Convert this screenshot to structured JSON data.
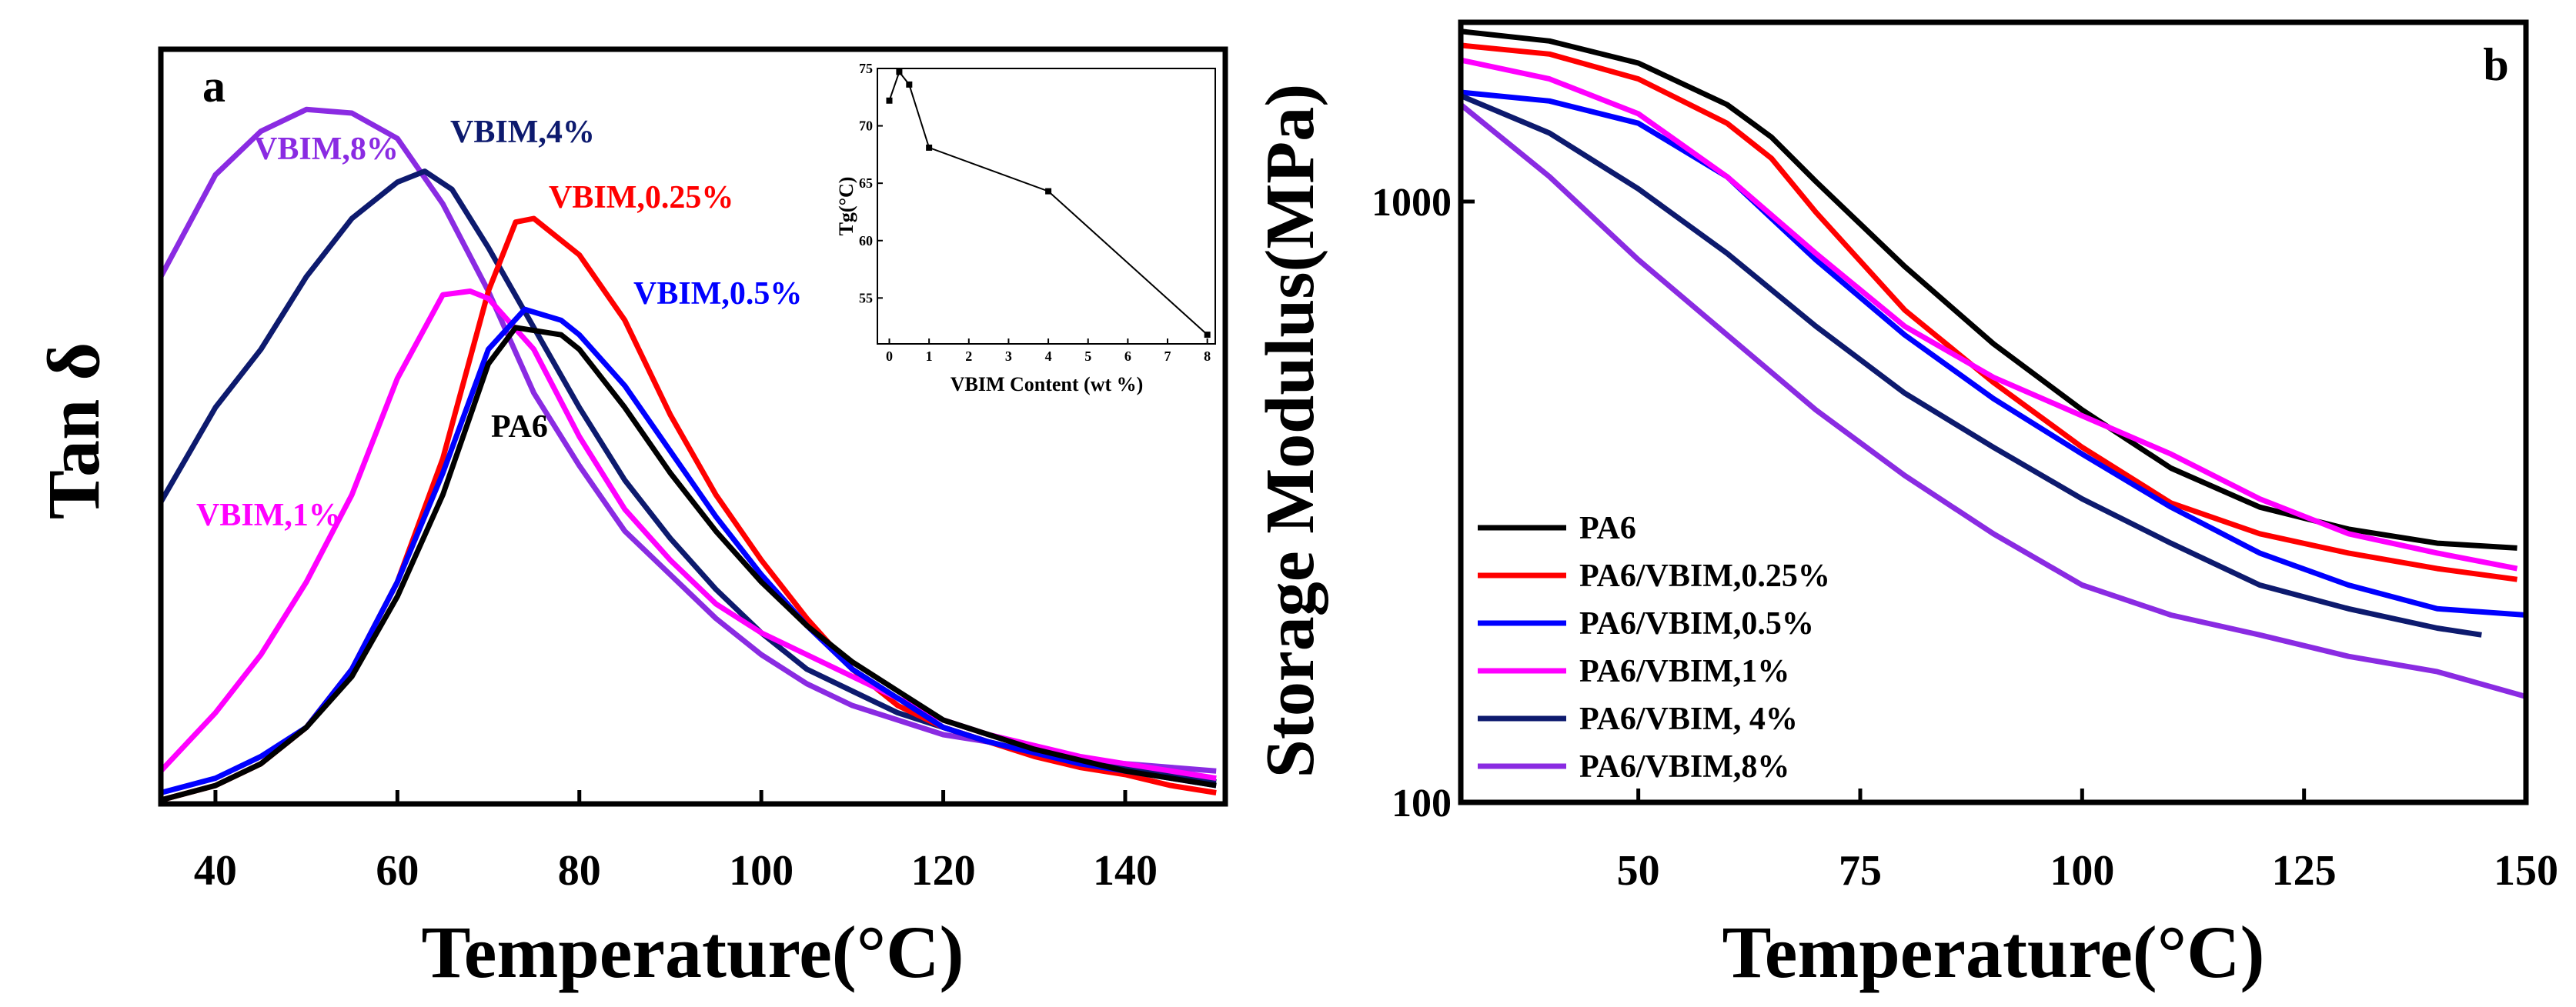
{
  "chart_data": [
    {
      "panel": "a",
      "type": "line",
      "ylabel": "Tan δ",
      "xlabel": "Temperature(°C)",
      "xlim": [
        34,
        151
      ],
      "ylim": [
        0,
        1
      ],
      "xticks": [
        40,
        60,
        80,
        100,
        120,
        140
      ],
      "yticks_shown": false,
      "series": [
        {
          "name": "VBIM,8%",
          "color": "#8a2be2",
          "x": [
            34,
            40,
            45,
            50,
            55,
            60,
            65,
            70,
            75,
            80,
            85,
            90,
            95,
            100,
            105,
            110,
            115,
            120,
            125,
            130,
            135,
            140,
            145,
            150
          ],
          "y": [
            0.72,
            0.86,
            0.92,
            0.95,
            0.945,
            0.91,
            0.82,
            0.7,
            0.56,
            0.46,
            0.37,
            0.31,
            0.25,
            0.2,
            0.16,
            0.13,
            0.11,
            0.09,
            0.08,
            0.065,
            0.055,
            0.05,
            0.045,
            0.04
          ]
        },
        {
          "name": "VBIM,4%",
          "color": "#0d1a6e",
          "x": [
            34,
            40,
            45,
            50,
            55,
            60,
            63,
            66,
            70,
            75,
            80,
            85,
            90,
            95,
            100,
            105,
            110,
            115,
            120,
            125,
            130,
            135,
            140,
            145,
            150
          ],
          "y": [
            0.41,
            0.54,
            0.62,
            0.72,
            0.8,
            0.85,
            0.865,
            0.84,
            0.76,
            0.65,
            0.54,
            0.44,
            0.36,
            0.29,
            0.23,
            0.18,
            0.15,
            0.12,
            0.1,
            0.08,
            0.065,
            0.055,
            0.045,
            0.035,
            0.025
          ]
        },
        {
          "name": "VBIM,0.25%",
          "color": "#ff0000",
          "x": [
            34,
            40,
            45,
            50,
            55,
            60,
            65,
            70,
            73,
            75,
            80,
            85,
            90,
            95,
            100,
            105,
            110,
            115,
            120,
            125,
            130,
            135,
            140,
            145,
            150
          ],
          "y": [
            0.0,
            0.02,
            0.05,
            0.1,
            0.18,
            0.3,
            0.47,
            0.7,
            0.795,
            0.8,
            0.75,
            0.66,
            0.53,
            0.42,
            0.33,
            0.25,
            0.18,
            0.13,
            0.1,
            0.08,
            0.06,
            0.045,
            0.035,
            0.02,
            0.01
          ]
        },
        {
          "name": "VBIM,1%",
          "color": "#ff00ff",
          "x": [
            34,
            40,
            45,
            50,
            55,
            60,
            65,
            68,
            70,
            75,
            80,
            85,
            90,
            95,
            100,
            105,
            110,
            115,
            120,
            125,
            130,
            135,
            140,
            145,
            150
          ],
          "y": [
            0.04,
            0.12,
            0.2,
            0.3,
            0.42,
            0.58,
            0.695,
            0.7,
            0.69,
            0.62,
            0.5,
            0.4,
            0.33,
            0.27,
            0.23,
            0.2,
            0.17,
            0.14,
            0.11,
            0.09,
            0.075,
            0.06,
            0.05,
            0.04,
            0.03
          ]
        },
        {
          "name": "VBIM,0.5%",
          "color": "#0000ff",
          "x": [
            34,
            40,
            45,
            50,
            55,
            60,
            65,
            70,
            74,
            78,
            80,
            85,
            90,
            95,
            100,
            105,
            110,
            115,
            120,
            125,
            130,
            135,
            140,
            145,
            150
          ],
          "y": [
            0.01,
            0.03,
            0.06,
            0.1,
            0.18,
            0.3,
            0.45,
            0.62,
            0.675,
            0.66,
            0.64,
            0.57,
            0.48,
            0.39,
            0.31,
            0.24,
            0.18,
            0.14,
            0.1,
            0.08,
            0.065,
            0.05,
            0.04,
            0.03,
            0.02
          ]
        },
        {
          "name": "PA6",
          "color": "#000000",
          "x": [
            34,
            40,
            45,
            50,
            55,
            60,
            65,
            70,
            73,
            78,
            80,
            85,
            90,
            95,
            100,
            105,
            110,
            115,
            120,
            125,
            130,
            135,
            140,
            145,
            150
          ],
          "y": [
            0.0,
            0.02,
            0.05,
            0.1,
            0.17,
            0.28,
            0.42,
            0.6,
            0.65,
            0.64,
            0.62,
            0.54,
            0.45,
            0.37,
            0.3,
            0.24,
            0.19,
            0.15,
            0.11,
            0.09,
            0.07,
            0.055,
            0.04,
            0.03,
            0.02
          ]
        }
      ],
      "annotations": [
        "VBIM,8%",
        "VBIM,4%",
        "VBIM,0.25%",
        "VBIM,0.5%",
        "PA6",
        "VBIM,1%"
      ],
      "inset": {
        "type": "line",
        "ylabel": "Tg(°C)",
        "xlabel": "VBIM Content (wt %)",
        "xlim": [
          -0.3,
          8.2
        ],
        "ylim": [
          51,
          75
        ],
        "xticks": [
          0,
          1,
          2,
          3,
          4,
          5,
          6,
          7,
          8
        ],
        "yticks": [
          55,
          60,
          65,
          70,
          75
        ],
        "x": [
          0,
          0.25,
          0.5,
          1,
          4,
          8
        ],
        "y": [
          72.2,
          74.7,
          73.6,
          68.1,
          64.3,
          51.8
        ]
      }
    },
    {
      "panel": "b",
      "type": "line",
      "yscale": "log",
      "ylabel": "Storage Modulus(MPa)",
      "xlabel": "Temperature(°C)",
      "xlim": [
        30,
        150
      ],
      "ylim": [
        100,
        2000
      ],
      "xticks": [
        50,
        75,
        100,
        125,
        150
      ],
      "yticks": [
        100,
        1000
      ],
      "legend_position": "bottom-left",
      "series": [
        {
          "name": "PA6",
          "color": "#000000",
          "x": [
            30,
            40,
            50,
            60,
            65,
            70,
            80,
            90,
            100,
            110,
            120,
            130,
            140,
            149
          ],
          "y": [
            1920,
            1850,
            1700,
            1450,
            1280,
            1080,
            780,
            580,
            450,
            360,
            310,
            285,
            270,
            265
          ]
        },
        {
          "name": "PA6/VBIM,0.25%",
          "color": "#ff0000",
          "x": [
            30,
            40,
            50,
            60,
            65,
            70,
            80,
            90,
            100,
            110,
            120,
            130,
            140,
            149
          ],
          "y": [
            1820,
            1760,
            1600,
            1350,
            1180,
            960,
            660,
            500,
            390,
            315,
            280,
            260,
            245,
            235
          ]
        },
        {
          "name": "PA6/VBIM,0.5%",
          "color": "#0000ff",
          "x": [
            30,
            40,
            50,
            60,
            70,
            80,
            90,
            100,
            110,
            120,
            130,
            140,
            150
          ],
          "y": [
            1520,
            1470,
            1350,
            1100,
            800,
            600,
            470,
            380,
            310,
            260,
            230,
            210,
            205
          ]
        },
        {
          "name": "PA6/VBIM,1%",
          "color": "#ff00ff",
          "x": [
            30,
            40,
            50,
            60,
            70,
            80,
            90,
            100,
            110,
            120,
            130,
            140,
            149
          ],
          "y": [
            1720,
            1600,
            1400,
            1100,
            820,
            620,
            510,
            440,
            380,
            320,
            280,
            260,
            245
          ]
        },
        {
          "name": "PA6/VBIM, 4%",
          "color": "#0d1a6e",
          "x": [
            30,
            40,
            50,
            60,
            70,
            80,
            90,
            100,
            110,
            120,
            130,
            140,
            145
          ],
          "y": [
            1500,
            1300,
            1050,
            820,
            620,
            480,
            390,
            320,
            270,
            230,
            210,
            195,
            190
          ]
        },
        {
          "name": "PA6/VBIM,8%",
          "color": "#8a2be2",
          "x": [
            30,
            40,
            50,
            60,
            70,
            80,
            90,
            100,
            110,
            120,
            130,
            140,
            150
          ],
          "y": [
            1450,
            1100,
            800,
            600,
            450,
            350,
            280,
            230,
            205,
            190,
            175,
            165,
            150
          ]
        }
      ]
    }
  ],
  "labels": {
    "panel_a": "a",
    "panel_b": "b"
  }
}
